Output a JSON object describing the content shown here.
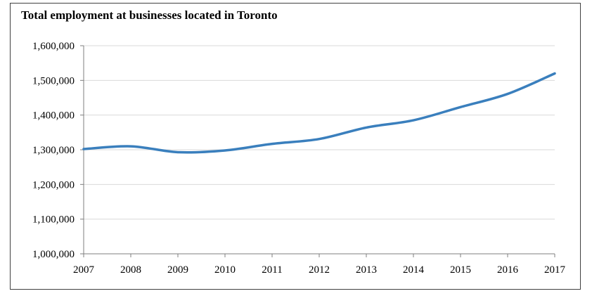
{
  "chart_data": {
    "type": "line",
    "title": "Total employment at businesses located in Toronto",
    "xlabel": "",
    "ylabel": "",
    "x": [
      2007,
      2008,
      2009,
      2010,
      2011,
      2012,
      2013,
      2014,
      2015,
      2016,
      2017
    ],
    "series": [
      {
        "values": [
          1302000,
          1310000,
          1293000,
          1298000,
          1317000,
          1331000,
          1364000,
          1385000,
          1423000,
          1461000,
          1520000
        ],
        "color": "#3a7fbd"
      }
    ],
    "ylim": [
      1000000,
      1600000
    ],
    "yticks": [
      1000000,
      1100000,
      1200000,
      1300000,
      1400000,
      1500000,
      1600000
    ],
    "ytick_labels": [
      "1,000,000",
      "1,100,000",
      "1,200,000",
      "1,300,000",
      "1,400,000",
      "1,500,000",
      "1,600,000"
    ],
    "xtick_labels": [
      "2007",
      "2008",
      "2009",
      "2010",
      "2011",
      "2012",
      "2013",
      "2014",
      "2015",
      "2016",
      "2017"
    ],
    "grid": true,
    "legend": "none"
  }
}
